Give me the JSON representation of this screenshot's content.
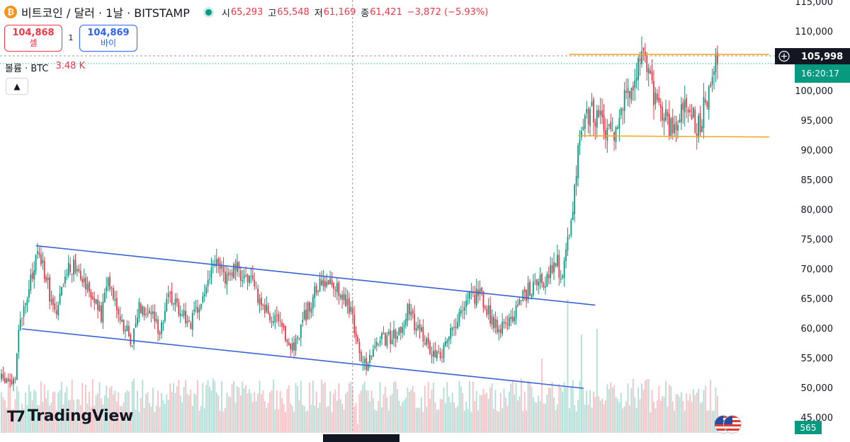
{
  "header": {
    "coin_icon": "bitcoin-icon",
    "title": "비트코인 / 달러 · 1날 · BITSTAMP",
    "live_status": "live-dot-icon",
    "ohlc": [
      {
        "key": "시",
        "value": "65,293"
      },
      {
        "key": "고",
        "value": "65,548"
      },
      {
        "key": "저",
        "value": "61,169"
      },
      {
        "key": "종",
        "value": "61,421"
      }
    ],
    "change": "−3,872 (−5.93%)"
  },
  "trade": {
    "sell_price": "104,868",
    "sell_label": "셀",
    "spread": "1",
    "buy_price": "104,869",
    "buy_label": "바이"
  },
  "volume": {
    "label": "볼륨 · BTC",
    "value": "3.48 K",
    "badge": "565"
  },
  "collapse_icon": "chevron-up-icon",
  "price_badge": {
    "add_icon": "plus-circle-icon",
    "price": "105,998",
    "countdown": "16:20:17"
  },
  "logo": {
    "text": "TradingView",
    "icon": "tradingview-logo-icon"
  },
  "flag_icon": "us-flag-icon",
  "colors": {
    "up": "#089981",
    "down": "#f23645",
    "channel": "#3a62d6",
    "level": "#f5a623",
    "badge_dark": "#131722",
    "badge_green": "#089981"
  },
  "chart_data": {
    "type": "candlestick",
    "y_tick_labels": [
      "115,000",
      "110,000",
      "105,000",
      "100,000",
      "95,000",
      "90,000",
      "85,000",
      "80,000",
      "75,000",
      "70,000",
      "65,000",
      "60,000",
      "55,000",
      "50,000",
      "45,000"
    ],
    "ylim": [
      42500,
      115000
    ],
    "grid": false,
    "anchors": [
      [
        0,
        51500
      ],
      [
        8,
        51000
      ],
      [
        10,
        60000
      ],
      [
        15,
        65000
      ],
      [
        20,
        72000
      ],
      [
        22,
        73000
      ],
      [
        28,
        66000
      ],
      [
        32,
        62000
      ],
      [
        38,
        70000
      ],
      [
        44,
        71000
      ],
      [
        52,
        66000
      ],
      [
        58,
        62000
      ],
      [
        62,
        69000
      ],
      [
        70,
        61000
      ],
      [
        76,
        58000
      ],
      [
        80,
        64000
      ],
      [
        86,
        63000
      ],
      [
        92,
        60000
      ],
      [
        98,
        66000
      ],
      [
        104,
        63000
      ],
      [
        110,
        61000
      ],
      [
        114,
        63000
      ],
      [
        124,
        71000
      ],
      [
        130,
        69000
      ],
      [
        136,
        70000
      ],
      [
        142,
        69000
      ],
      [
        148,
        66000
      ],
      [
        154,
        63000
      ],
      [
        160,
        61000
      ],
      [
        166,
        58000
      ],
      [
        170,
        57000
      ],
      [
        176,
        62000
      ],
      [
        184,
        67000
      ],
      [
        192,
        68000
      ],
      [
        198,
        66000
      ],
      [
        204,
        62000
      ],
      [
        208,
        56000
      ],
      [
        212,
        54000
      ],
      [
        218,
        58000
      ],
      [
        224,
        58500
      ],
      [
        230,
        59000
      ],
      [
        236,
        63000
      ],
      [
        242,
        60000
      ],
      [
        248,
        57000
      ],
      [
        254,
        55000
      ],
      [
        258,
        58000
      ],
      [
        266,
        62000
      ],
      [
        272,
        65000
      ],
      [
        278,
        66000
      ],
      [
        284,
        62000
      ],
      [
        290,
        60000
      ],
      [
        296,
        62000
      ],
      [
        302,
        65000
      ],
      [
        308,
        67000
      ],
      [
        314,
        68000
      ],
      [
        318,
        69000
      ],
      [
        322,
        72000
      ],
      [
        326,
        68000
      ],
      [
        330,
        76000
      ],
      [
        336,
        92000
      ],
      [
        342,
        97000
      ],
      [
        348,
        95000
      ],
      [
        354,
        92000
      ],
      [
        360,
        97000
      ],
      [
        366,
        101000
      ],
      [
        370,
        104000
      ],
      [
        374,
        107000
      ],
      [
        378,
        100000
      ],
      [
        384,
        96000
      ],
      [
        390,
        93000
      ],
      [
        396,
        99000
      ],
      [
        402,
        96000
      ],
      [
        404,
        93000
      ],
      [
        410,
        99000
      ],
      [
        414,
        104000
      ],
      [
        416,
        106000
      ]
    ],
    "candle_count": 417,
    "volume_spikes": [
      [
        207,
        44000
      ],
      [
        314,
        55000
      ],
      [
        329,
        65000
      ],
      [
        337,
        59000
      ],
      [
        346,
        60000
      ],
      [
        354,
        51000
      ]
    ],
    "lines": [
      {
        "name": "",
        "kind": "channel-upper",
        "from": [
          20,
          74000
        ],
        "to": [
          345,
          64000
        ]
      },
      {
        "name": "",
        "kind": "channel-lower",
        "from": [
          12,
          60000
        ],
        "to": [
          338,
          50000
        ]
      },
      {
        "name": "",
        "kind": "level-top",
        "from": [
          330,
          106200
        ],
        "to": [
          446,
          106200
        ]
      },
      {
        "name": "",
        "kind": "level-bottom",
        "from": [
          335,
          92500
        ],
        "to": [
          446,
          92300
        ]
      }
    ],
    "crosshair_candle": 204
  }
}
